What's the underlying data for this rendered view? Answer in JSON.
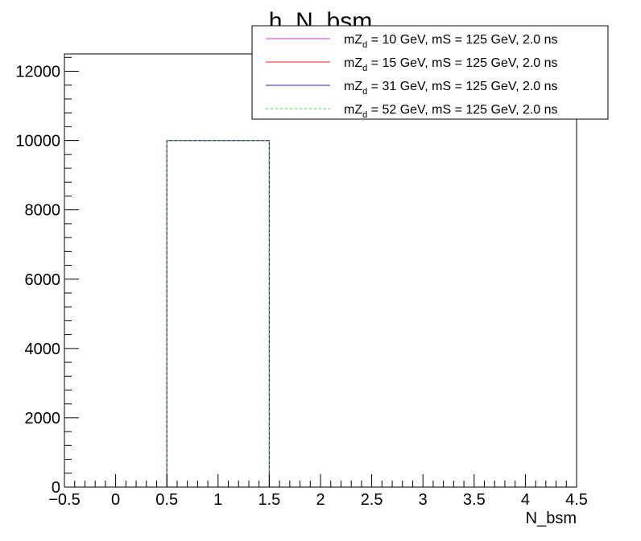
{
  "chart_data": {
    "type": "bar",
    "title": "h_N_bsm",
    "xlabel": "N_bsm",
    "ylabel": "",
    "xlim": [
      -0.5,
      4.5
    ],
    "ylim": [
      0,
      12500
    ],
    "bin_edges": [
      -0.5,
      0.5,
      1.5,
      2.5,
      3.5,
      4.5
    ],
    "x_ticks": [
      -0.5,
      0,
      0.5,
      1,
      1.5,
      2,
      2.5,
      3,
      3.5,
      4,
      4.5
    ],
    "x_tick_labels": [
      "−0.5",
      "0",
      "0.5",
      "1",
      "1.5",
      "2",
      "2.5",
      "3",
      "3.5",
      "4",
      "4.5"
    ],
    "y_ticks": [
      0,
      2000,
      4000,
      6000,
      8000,
      10000,
      12000
    ],
    "y_tick_labels": [
      "0",
      "2000",
      "4000",
      "6000",
      "8000",
      "10000",
      "12000"
    ],
    "grid": false,
    "legend_position": "top-right",
    "series": [
      {
        "name": "mZ_d = 10 GeV, mS = 125 GeV, 2.0 ns",
        "label_main": "mZ",
        "label_sub": "d",
        "label_rest": " = 10 GeV, mS = 125 GeV, 2.0 ns",
        "color": "#cc33cc",
        "dash": "solid",
        "values": [
          0,
          10000,
          0,
          0,
          0
        ]
      },
      {
        "name": "mZ_d = 15 GeV, mS = 125 GeV, 2.0 ns",
        "label_main": "mZ",
        "label_sub": "d",
        "label_rest": " = 15 GeV, mS = 125 GeV, 2.0 ns",
        "color": "#dd2222",
        "dash": "solid",
        "values": [
          0,
          10000,
          0,
          0,
          0
        ]
      },
      {
        "name": "mZ_d = 31 GeV, mS = 125 GeV, 2.0 ns",
        "label_main": "mZ",
        "label_sub": "d",
        "label_rest": " = 31 GeV, mS = 125 GeV, 2.0 ns",
        "color": "#2222aa",
        "dash": "solid",
        "values": [
          0,
          10000,
          0,
          0,
          0
        ]
      },
      {
        "name": "mZ_d = 52 GeV, mS = 125 GeV, 2.0 ns",
        "label_main": "mZ",
        "label_sub": "d",
        "label_rest": " = 52 GeV, mS = 125 GeV, 2.0 ns",
        "color": "#33dd33",
        "dash": "dashed",
        "values": [
          0,
          10000,
          0,
          0,
          0
        ]
      }
    ]
  }
}
